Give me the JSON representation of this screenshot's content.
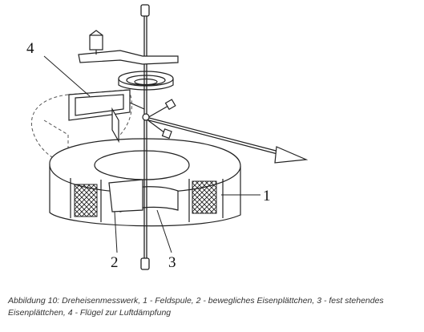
{
  "labels": {
    "l1": "1",
    "l2": "2",
    "l3": "3",
    "l4": "4"
  },
  "caption": "Abbildung 10: Dreheisenmesswerk, 1 - Feldspule, 2 - bewegliches Eisenplättchen, 3 - fest stehendes Eisenplättchen, 4 - Flügel zur Luftdämpfung"
}
